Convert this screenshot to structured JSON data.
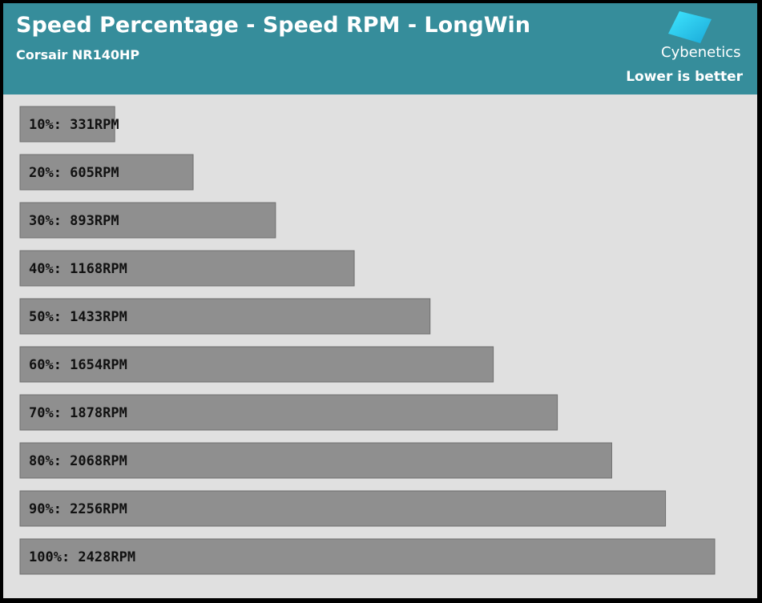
{
  "header": {
    "title": "Speed Percentage - Speed RPM - LongWin",
    "subtitle": "Corsair NR140HP",
    "brand": "Cybenetics",
    "note": "Lower is better",
    "brand_icon": "cybenetics-logo-icon"
  },
  "colors": {
    "header_bg": "#368d9b",
    "plot_bg": "#e0e0e0",
    "bar_fill": "#8f8f8f",
    "bar_stroke": "#6f6f6f",
    "label_text": "#111111"
  },
  "chart_data": {
    "type": "bar",
    "orientation": "horizontal",
    "title": "Speed Percentage - Speed RPM - LongWin",
    "subtitle": "Corsair NR140HP",
    "categories": [
      "10%",
      "20%",
      "30%",
      "40%",
      "50%",
      "60%",
      "70%",
      "80%",
      "90%",
      "100%"
    ],
    "values": [
      331,
      605,
      893,
      1168,
      1433,
      1654,
      1878,
      2068,
      2256,
      2428
    ],
    "labels": [
      "10%: 331RPM",
      "20%: 605RPM",
      "30%: 893RPM",
      "40%: 1168RPM",
      "50%: 1433RPM",
      "60%: 1654RPM",
      "70%: 1878RPM",
      "80%: 2068RPM",
      "90%: 2256RPM",
      "100%: 2428RPM"
    ],
    "xlim": [
      0,
      2428
    ],
    "grid": false,
    "legend": "none"
  }
}
